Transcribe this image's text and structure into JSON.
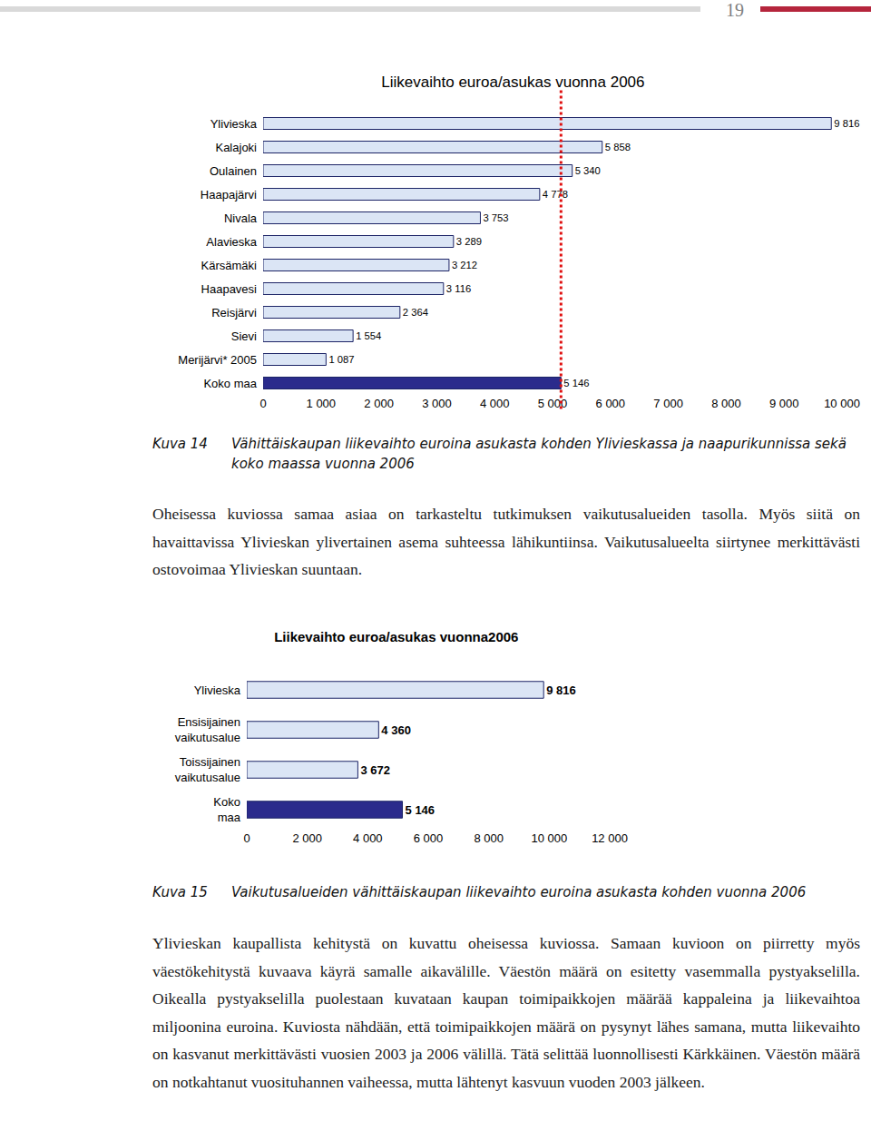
{
  "page_number": "19",
  "chart_data": [
    {
      "type": "bar",
      "orientation": "horizontal",
      "title": "Liikevaihto euroa/asukas vuonna 2006",
      "categories": [
        "Ylivieska",
        "Kalajoki",
        "Oulainen",
        "Haapajärvi",
        "Nivala",
        "Alavieska",
        "Kärsämäki",
        "Haapavesi",
        "Reisjärvi",
        "Sievi",
        "Merijärvi* 2005",
        "Koko maa"
      ],
      "values": [
        9816,
        5858,
        5340,
        4778,
        3753,
        3289,
        3212,
        3116,
        2364,
        1554,
        1087,
        5146
      ],
      "value_labels": [
        "9 816",
        "5 858",
        "5 340",
        "4 778",
        "3 753",
        "3 289",
        "3 212",
        "3 116",
        "2 364",
        "1 554",
        "1 087",
        "5 146"
      ],
      "colors": [
        "#dbe5f5",
        "#dbe5f5",
        "#dbe5f5",
        "#dbe5f5",
        "#dbe5f5",
        "#dbe5f5",
        "#dbe5f5",
        "#dbe5f5",
        "#dbe5f5",
        "#dbe5f5",
        "#dbe5f5",
        "#2b2b8c"
      ],
      "xlim": [
        0,
        10000
      ],
      "xticks": [
        0,
        {
          "value": 1000,
          "label": "1 000"
        },
        {
          "value": 2000,
          "label": "2 000"
        },
        {
          "value": 3000,
          "label": "3 000"
        },
        {
          "value": 4000,
          "label": "4 000"
        },
        {
          "value": 5000,
          "label": "5 000"
        },
        {
          "value": 6000,
          "label": "6 000"
        },
        {
          "value": 7000,
          "label": "7 000"
        },
        {
          "value": 8000,
          "label": "8 000"
        },
        {
          "value": 9000,
          "label": "9 000"
        },
        {
          "value": 10000,
          "label": "10 000"
        }
      ],
      "grid": false,
      "data_labels": true
    },
    {
      "type": "bar",
      "orientation": "horizontal",
      "title": "Liikevaihto euroa/asukas vuonna2006",
      "categories": [
        "Ylivieska",
        "Ensisijainen vaikutusalue",
        "Toissijainen vaikutusalue",
        "Koko maa"
      ],
      "values": [
        9816,
        4360,
        3672,
        5146
      ],
      "value_labels": [
        "9 816",
        "4 360",
        "3 672",
        "5 146"
      ],
      "colors": [
        "#dbe5f5",
        "#dbe5f5",
        "#dbe5f5",
        "#2b2b8c"
      ],
      "xlim": [
        0,
        12000
      ],
      "xticks": [
        0,
        {
          "value": 2000,
          "label": "2 000"
        },
        {
          "value": 4000,
          "label": "4 000"
        },
        {
          "value": 6000,
          "label": "6 000"
        },
        {
          "value": 8000,
          "label": "8 000"
        },
        {
          "value": 10000,
          "label": "10 000"
        },
        {
          "value": 12000,
          "label": "12 000"
        }
      ],
      "grid": false,
      "data_labels": true
    }
  ],
  "figures": [
    {
      "label": "Kuva 14",
      "caption": "Vähittäiskaupan liikevaihto euroina asukasta kohden Ylivieskassa ja naapurikunnissa sekä koko maassa vuonna 2006"
    },
    {
      "label": "Kuva 15",
      "caption": "Vaikutusalueiden vähittäiskaupan liikevaihto euroina asukasta kohden vuonna 2006"
    }
  ],
  "paragraphs": [
    "Oheisessa kuviossa samaa asiaa on tarkasteltu tutkimuksen vaikutusalueiden tasolla. Myös siitä on havaittavissa Ylivieskan ylivertainen asema suhteessa lähikuntiinsa. Vaikutusalueelta siirtynee merkittävästi ostovoimaa Ylivieskan suuntaan.",
    "Ylivieskan kaupallista kehitystä on kuvattu oheisessa kuviossa. Samaan kuvioon on piirretty myös väestökehitystä kuvaava käyrä samalle aikavälille. Väestön määrä on esitetty vasemmalla pystyakselilla. Oikealla pystyakselilla puolestaan kuvataan kaupan toimipaikkojen määrää kappaleina ja liikevaihtoa miljoonina euroina. Kuviosta nähdään, että toimipaikkojen määrä on pysynyt lähes samana, mutta liikevaihto on kasvanut merkittävästi vuosien 2003 ja 2006 välillä. Tätä selittää luonnollisesti Kärkkäinen. Väestön määrä on notkahtanut vuosituhannen vaiheessa, mutta lähtenyt kasvuun vuoden 2003 jälkeen."
  ]
}
